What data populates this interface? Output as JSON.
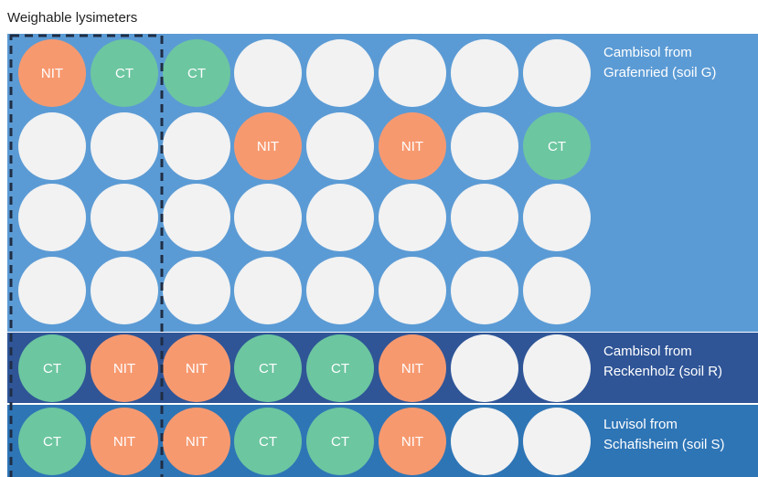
{
  "title": "Weighable lysimeters",
  "rows": [
    [
      "NIT",
      "CT",
      "CT",
      null,
      null,
      null,
      null,
      null
    ],
    [
      null,
      null,
      null,
      "NIT",
      null,
      "NIT",
      null,
      "CT"
    ],
    [
      null,
      null,
      null,
      null,
      null,
      null,
      null,
      null
    ],
    [
      null,
      null,
      null,
      null,
      null,
      null,
      null,
      null
    ],
    [
      "CT",
      "NIT",
      "NIT",
      "CT",
      "CT",
      "NIT",
      null,
      null
    ],
    [
      "CT",
      "NIT",
      "NIT",
      "CT",
      "CT",
      "NIT",
      null,
      null
    ]
  ],
  "soils": [
    {
      "lines": [
        "Cambisol from",
        "Grafenried (soil G)"
      ]
    },
    {
      "lines": [
        "Cambisol from",
        "Reckenholz (soil R)"
      ]
    },
    {
      "lines": [
        "Luvisol from",
        "Schafisheim (soil S)"
      ]
    }
  ]
}
